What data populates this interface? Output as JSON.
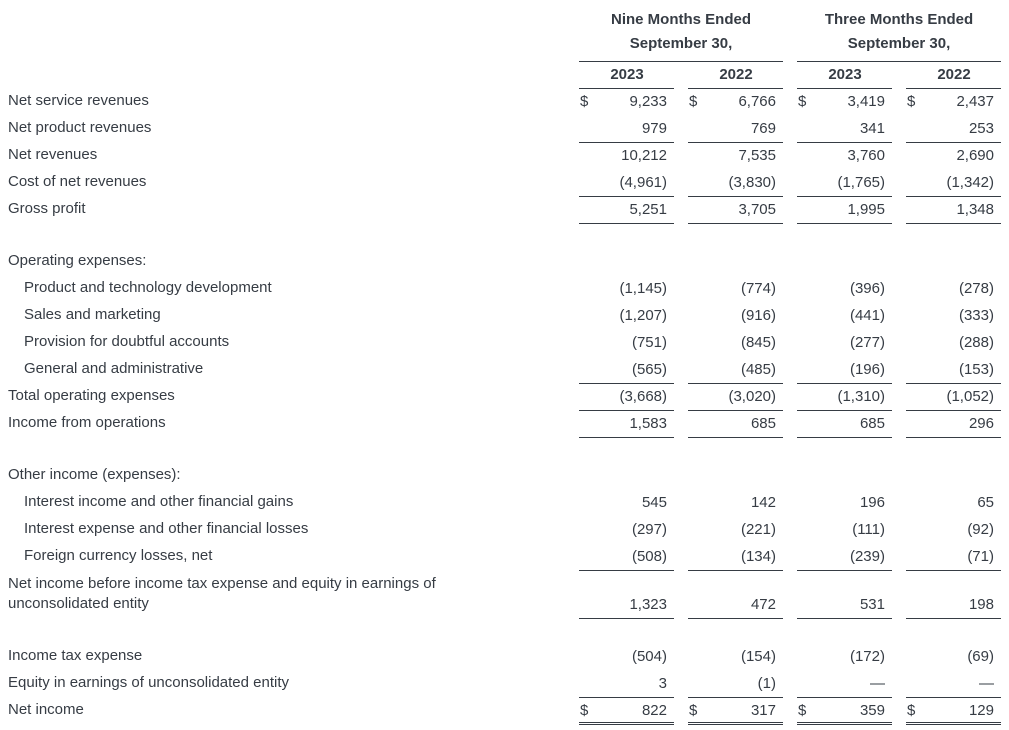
{
  "colors": {
    "text": "#363c44",
    "line": "#363c44",
    "background": "#ffffff"
  },
  "table": {
    "currency_symbol": "$",
    "groups": [
      {
        "title": "Nine Months Ended",
        "subtitle": "September 30,",
        "years": [
          "2023",
          "2022"
        ]
      },
      {
        "title": "Three Months Ended",
        "subtitle": "September 30,",
        "years": [
          "2023",
          "2022"
        ]
      }
    ],
    "rows": [
      {
        "label": "Net service revenues",
        "indent": 0,
        "dollar": true,
        "border": "none",
        "values": [
          "9,233",
          "6,766",
          "3,419",
          "2,437"
        ]
      },
      {
        "label": "Net product revenues",
        "indent": 0,
        "dollar": false,
        "border": "single",
        "values": [
          "979",
          "769",
          "341",
          "253"
        ]
      },
      {
        "label": "Net revenues",
        "indent": 0,
        "dollar": false,
        "border": "none",
        "values": [
          "10,212",
          "7,535",
          "3,760",
          "2,690"
        ]
      },
      {
        "label": "Cost of net revenues",
        "indent": 0,
        "dollar": false,
        "border": "single",
        "values": [
          "(4,961)",
          "(3,830)",
          "(1,765)",
          "(1,342)"
        ]
      },
      {
        "label": "Gross profit",
        "indent": 0,
        "dollar": false,
        "border": "single",
        "values": [
          "5,251",
          "3,705",
          "1,995",
          "1,348"
        ]
      },
      {
        "type": "spacer"
      },
      {
        "label": "Operating expenses:",
        "indent": 0,
        "values": null
      },
      {
        "label": "Product and technology development",
        "indent": 1,
        "dollar": false,
        "border": "none",
        "values": [
          "(1,145)",
          "(774)",
          "(396)",
          "(278)"
        ]
      },
      {
        "label": "Sales and marketing",
        "indent": 1,
        "dollar": false,
        "border": "none",
        "values": [
          "(1,207)",
          "(916)",
          "(441)",
          "(333)"
        ]
      },
      {
        "label": "Provision for doubtful accounts",
        "indent": 1,
        "dollar": false,
        "border": "none",
        "values": [
          "(751)",
          "(845)",
          "(277)",
          "(288)"
        ]
      },
      {
        "label": "General and administrative",
        "indent": 1,
        "dollar": false,
        "border": "single",
        "values": [
          "(565)",
          "(485)",
          "(196)",
          "(153)"
        ]
      },
      {
        "label": "Total operating expenses",
        "indent": 0,
        "dollar": false,
        "border": "single",
        "values": [
          "(3,668)",
          "(3,020)",
          "(1,310)",
          "(1,052)"
        ]
      },
      {
        "label": "Income from operations",
        "indent": 0,
        "dollar": false,
        "border": "single",
        "values": [
          "1,583",
          "685",
          "685",
          "296"
        ]
      },
      {
        "type": "spacer"
      },
      {
        "label": "Other income (expenses):",
        "indent": 0,
        "values": null
      },
      {
        "label": "Interest income and other financial gains",
        "indent": 1,
        "dollar": false,
        "border": "none",
        "values": [
          "545",
          "142",
          "196",
          "65"
        ]
      },
      {
        "label": "Interest expense and other financial losses",
        "indent": 1,
        "dollar": false,
        "border": "none",
        "values": [
          "(297)",
          "(221)",
          "(111)",
          "(92)"
        ]
      },
      {
        "label": "Foreign currency losses, net",
        "indent": 1,
        "dollar": false,
        "border": "single",
        "values": [
          "(508)",
          "(134)",
          "(239)",
          "(71)"
        ]
      },
      {
        "label": "Net income before income tax expense and equity in earnings of unconsolidated entity",
        "indent": 0,
        "dollar": false,
        "border": "single",
        "twoline": true,
        "values": [
          "1,323",
          "472",
          "531",
          "198"
        ]
      },
      {
        "type": "spacer"
      },
      {
        "label": "Income tax expense",
        "indent": 0,
        "dollar": false,
        "border": "none",
        "values": [
          "(504)",
          "(154)",
          "(172)",
          "(69)"
        ]
      },
      {
        "label": "Equity in earnings of unconsolidated entity",
        "indent": 0,
        "dollar": false,
        "border": "single",
        "values": [
          "3",
          "(1)",
          "—",
          "—"
        ]
      },
      {
        "label": "Net income",
        "indent": 0,
        "dollar": true,
        "border": "double",
        "values": [
          "822",
          "317",
          "359",
          "129"
        ]
      }
    ]
  }
}
